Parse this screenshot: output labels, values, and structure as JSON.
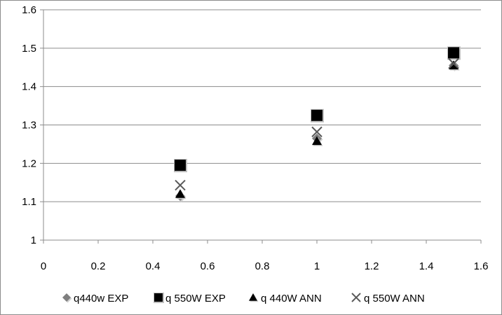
{
  "chart_data": {
    "type": "scatter",
    "title": "",
    "xlabel": "",
    "ylabel": "",
    "xlim": [
      0,
      1.6
    ],
    "ylim": [
      1,
      1.6
    ],
    "x_ticks": [
      "0",
      "0.2",
      "0.4",
      "0.6",
      "0.8",
      "1",
      "1.2",
      "1.4",
      "1.6"
    ],
    "y_ticks": [
      "1",
      "1.1",
      "1.2",
      "1.3",
      "1.4",
      "1.5",
      "1.6"
    ],
    "grid": "horizontal",
    "legend_position": "bottom",
    "series": [
      {
        "name": "q440w EXP",
        "marker": "diamond",
        "color": "#7f7f7f",
        "x": [
          0.5,
          1.0,
          1.5
        ],
        "y": [
          1.115,
          1.265,
          1.455
        ]
      },
      {
        "name": "q 550W EXP",
        "marker": "square",
        "color": "#000000",
        "x": [
          0.5,
          1.0,
          1.5
        ],
        "y": [
          1.195,
          1.325,
          1.488
        ]
      },
      {
        "name": "q 440W ANN",
        "marker": "triangle",
        "color": "#000000",
        "x": [
          0.5,
          1.0,
          1.5
        ],
        "y": [
          1.12,
          1.258,
          1.455
        ]
      },
      {
        "name": "q 550W ANN",
        "marker": "x",
        "color": "#595959",
        "x": [
          0.5,
          1.0,
          1.5
        ],
        "y": [
          1.143,
          1.282,
          1.46
        ]
      }
    ]
  }
}
